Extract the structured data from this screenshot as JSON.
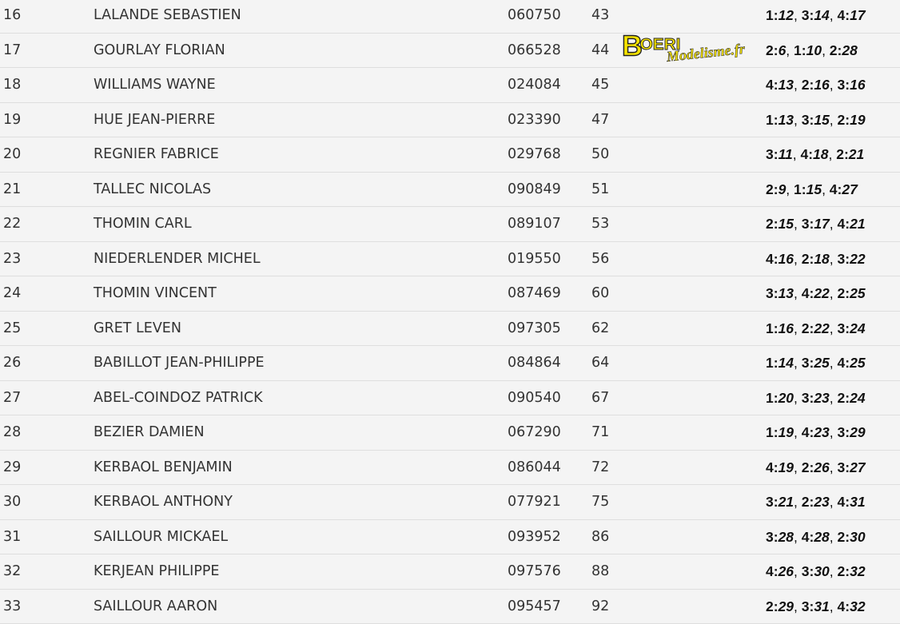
{
  "rows": [
    {
      "pos": "16",
      "name": "LALANDE SEBASTIEN",
      "licence": "060750",
      "points": "43",
      "scores": [
        "1:12",
        "3:14",
        "4:17"
      ]
    },
    {
      "pos": "17",
      "name": "GOURLAY FLORIAN",
      "licence": "066528",
      "points": "44",
      "scores": [
        "2:6",
        "1:10",
        "2:28"
      ]
    },
    {
      "pos": "18",
      "name": "WILLIAMS WAYNE",
      "licence": "024084",
      "points": "45",
      "scores": [
        "4:13",
        "2:16",
        "3:16"
      ]
    },
    {
      "pos": "19",
      "name": "HUE JEAN-PIERRE",
      "licence": "023390",
      "points": "47",
      "scores": [
        "1:13",
        "3:15",
        "2:19"
      ]
    },
    {
      "pos": "20",
      "name": "REGNIER FABRICE",
      "licence": "029768",
      "points": "50",
      "scores": [
        "3:11",
        "4:18",
        "2:21"
      ]
    },
    {
      "pos": "21",
      "name": "TALLEC NICOLAS",
      "licence": "090849",
      "points": "51",
      "scores": [
        "2:9",
        "1:15",
        "4:27"
      ]
    },
    {
      "pos": "22",
      "name": "THOMIN CARL",
      "licence": "089107",
      "points": "53",
      "scores": [
        "2:15",
        "3:17",
        "4:21"
      ]
    },
    {
      "pos": "23",
      "name": "NIEDERLENDER MICHEL",
      "licence": "019550",
      "points": "56",
      "scores": [
        "4:16",
        "2:18",
        "3:22"
      ]
    },
    {
      "pos": "24",
      "name": "THOMIN VINCENT",
      "licence": "087469",
      "points": "60",
      "scores": [
        "3:13",
        "4:22",
        "2:25"
      ]
    },
    {
      "pos": "25",
      "name": "GRET LEVEN",
      "licence": "097305",
      "points": "62",
      "scores": [
        "1:16",
        "2:22",
        "3:24"
      ]
    },
    {
      "pos": "26",
      "name": "BABILLOT JEAN-PHILIPPE",
      "licence": "084864",
      "points": "64",
      "scores": [
        "1:14",
        "3:25",
        "4:25"
      ]
    },
    {
      "pos": "27",
      "name": "ABEL-COINDOZ PATRICK",
      "licence": "090540",
      "points": "67",
      "scores": [
        "1:20",
        "3:23",
        "2:24"
      ]
    },
    {
      "pos": "28",
      "name": "BEZIER DAMIEN",
      "licence": "067290",
      "points": "71",
      "scores": [
        "1:19",
        "4:23",
        "3:29"
      ]
    },
    {
      "pos": "29",
      "name": "KERBAOL BENJAMIN",
      "licence": "086044",
      "points": "72",
      "scores": [
        "4:19",
        "2:26",
        "3:27"
      ]
    },
    {
      "pos": "30",
      "name": "KERBAOL ANTHONY",
      "licence": "077921",
      "points": "75",
      "scores": [
        "3:21",
        "2:23",
        "4:31"
      ]
    },
    {
      "pos": "31",
      "name": "SAILLOUR MICKAEL",
      "licence": "093952",
      "points": "86",
      "scores": [
        "3:28",
        "4:28",
        "2:30"
      ]
    },
    {
      "pos": "32",
      "name": "KERJEAN PHILIPPE",
      "licence": "097576",
      "points": "88",
      "scores": [
        "4:26",
        "3:30",
        "2:32"
      ]
    },
    {
      "pos": "33",
      "name": "SAILLOUR AARON",
      "licence": "095457",
      "points": "92",
      "scores": [
        "2:29",
        "3:31",
        "4:32"
      ]
    }
  ],
  "watermark": {
    "text_main": "BOERI",
    "text_sub": "Modelisme.fr",
    "color": "#f5e200"
  }
}
